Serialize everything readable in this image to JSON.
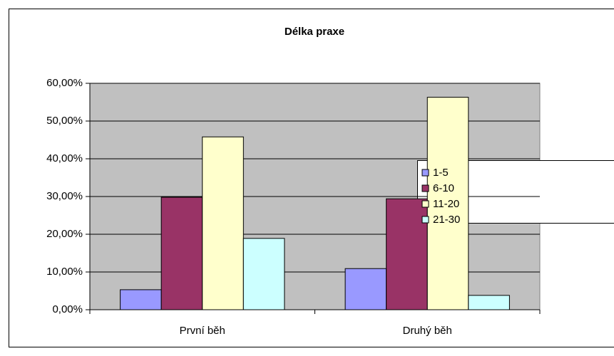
{
  "chart_data": {
    "type": "bar",
    "title": "Délka praxe",
    "categories": [
      "První běh",
      "Druhý běh"
    ],
    "series": [
      {
        "name": "1-5",
        "color": "#9999ff",
        "values": [
          5.3,
          10.9
        ]
      },
      {
        "name": "6-10",
        "color": "#993366",
        "values": [
          29.8,
          29.4
        ]
      },
      {
        "name": "11-20",
        "color": "#ffffcc",
        "values": [
          45.8,
          56.3
        ]
      },
      {
        "name": "21-30",
        "color": "#ccffff",
        "values": [
          18.9,
          3.8
        ]
      }
    ],
    "ylim": [
      0,
      60
    ],
    "yticks": [
      {
        "value": 0,
        "label": "0,00%"
      },
      {
        "value": 10,
        "label": "10,00%"
      },
      {
        "value": 20,
        "label": "20,00%"
      },
      {
        "value": 30,
        "label": "30,00%"
      },
      {
        "value": 40,
        "label": "40,00%"
      },
      {
        "value": 50,
        "label": "50,00%"
      },
      {
        "value": 60,
        "label": "60,00%"
      }
    ],
    "grid": true,
    "legend": "right"
  }
}
